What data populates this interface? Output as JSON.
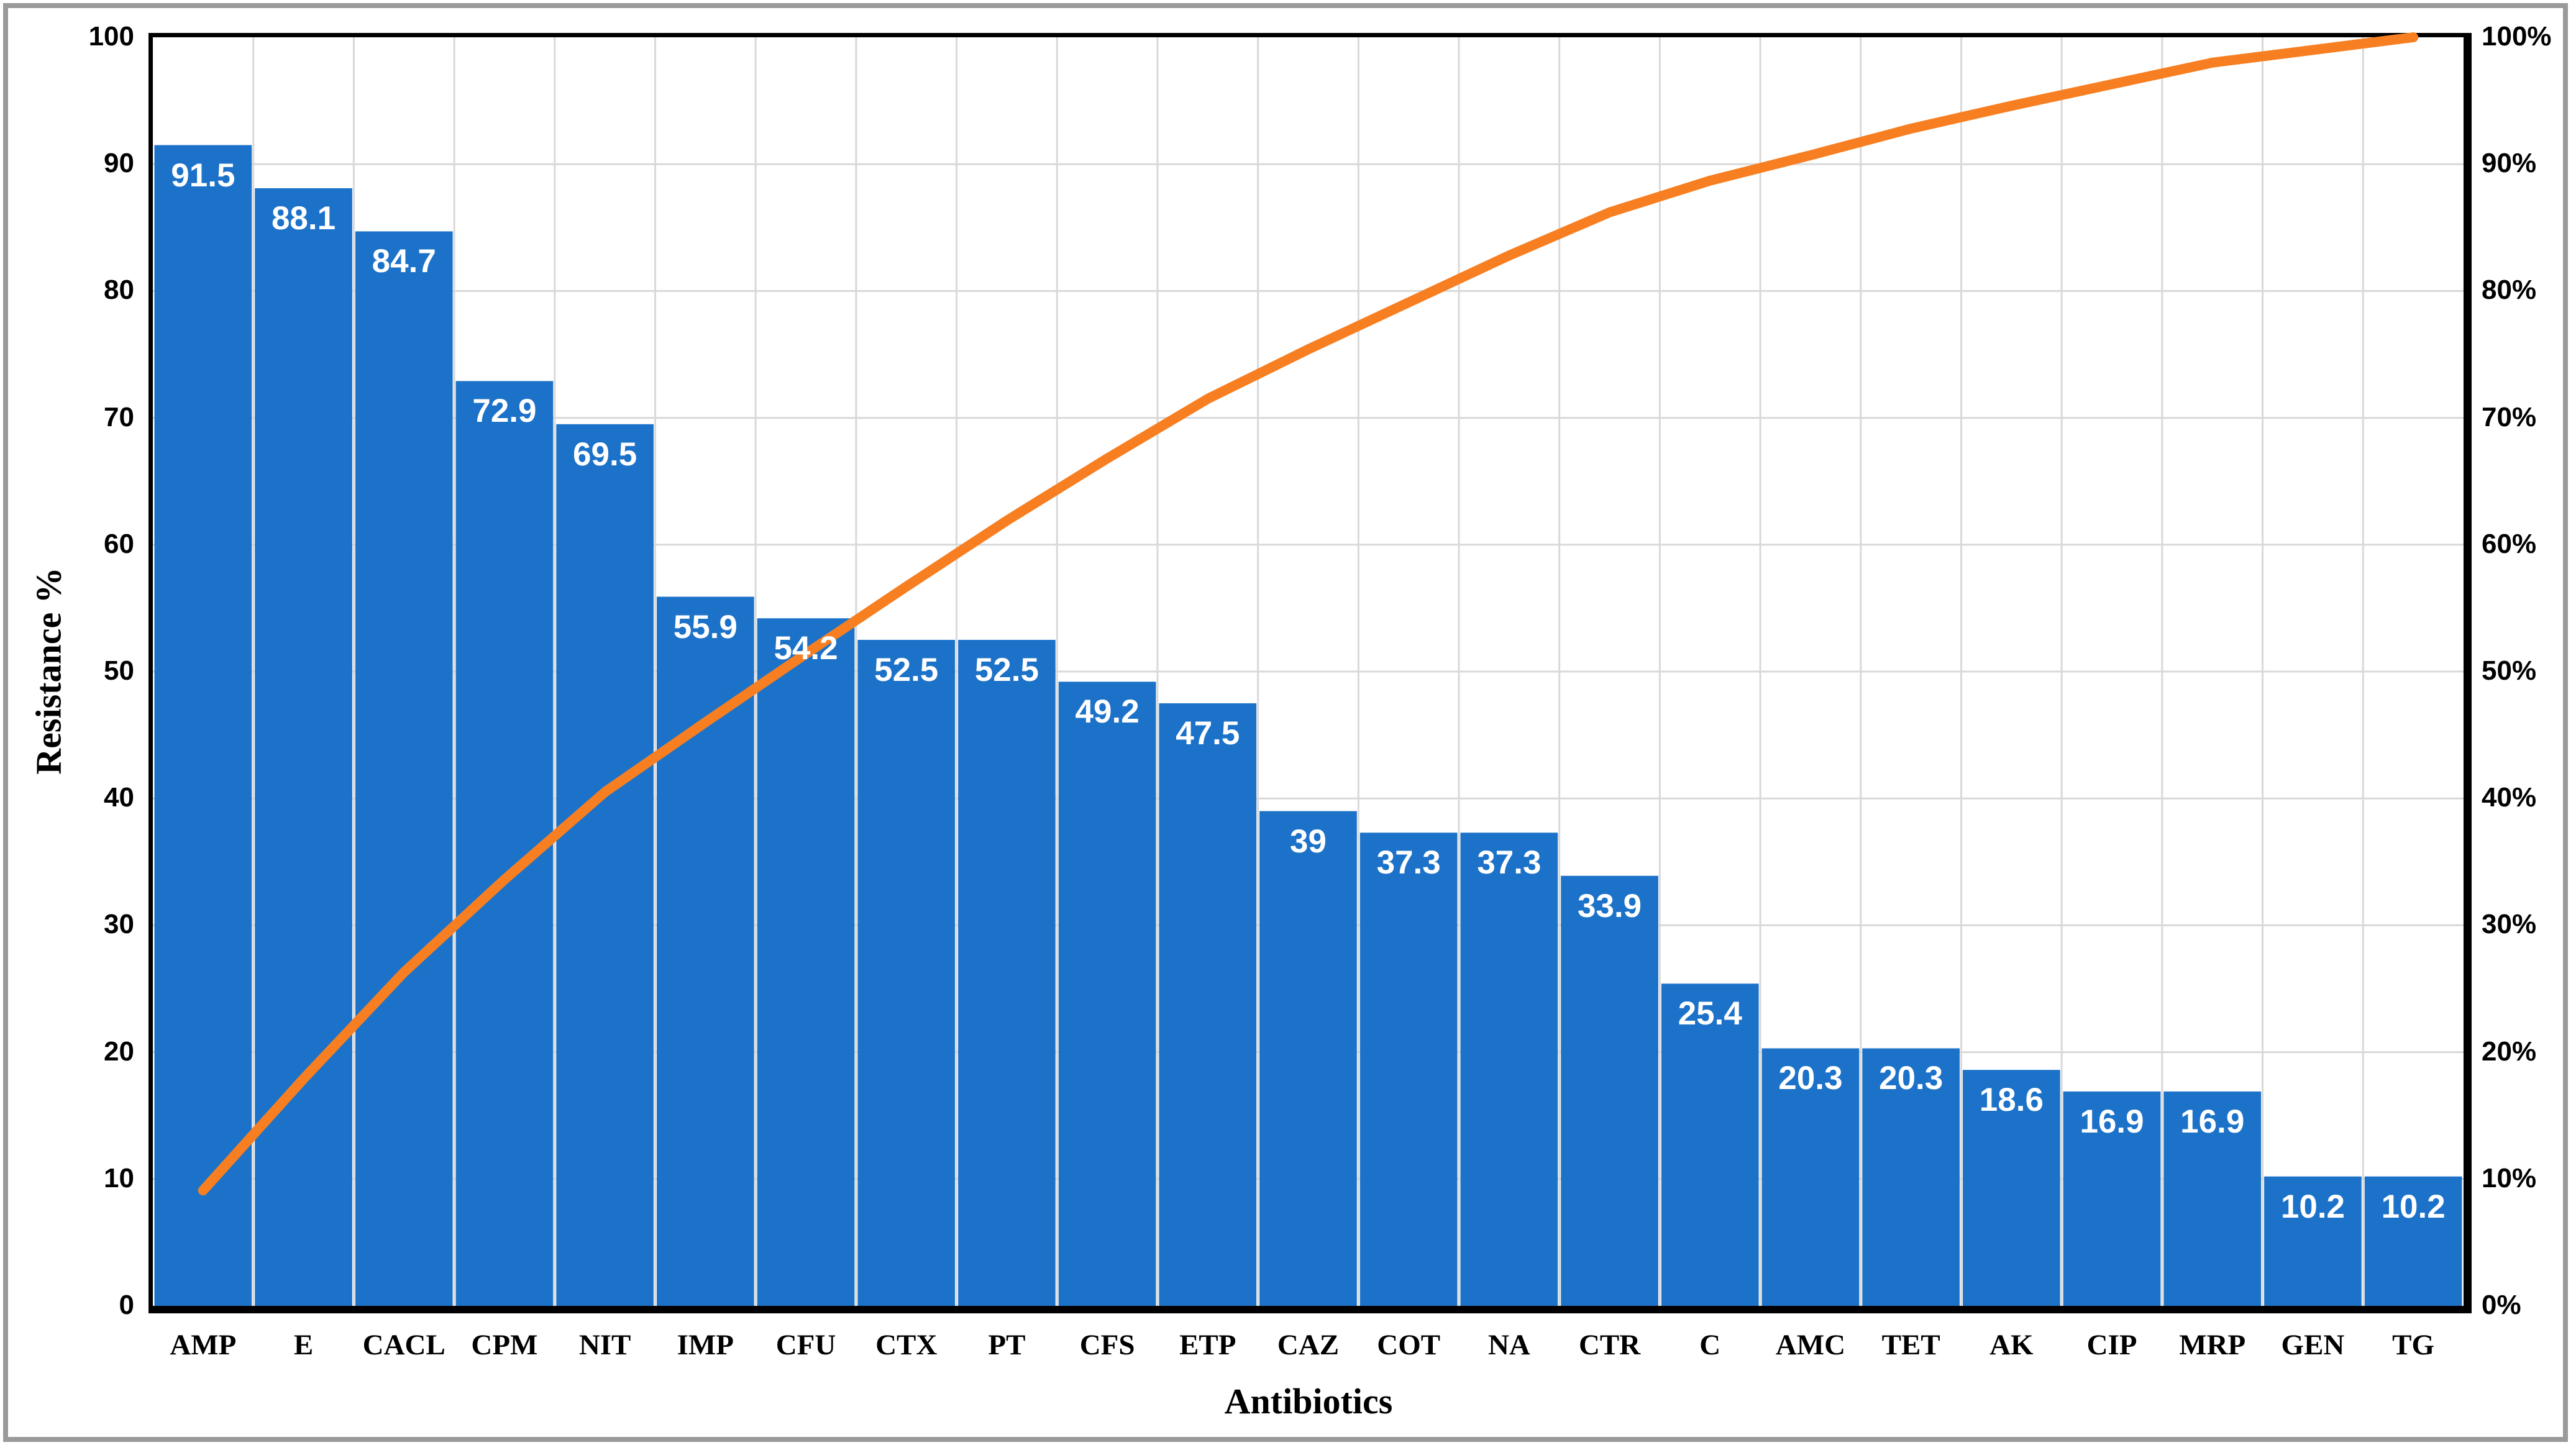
{
  "chart_data": {
    "type": "bar",
    "subtype": "pareto",
    "title": "",
    "xlabel": "Antibiotics",
    "ylabel": "Resistance %",
    "categories": [
      "AMP",
      "E",
      "CACL",
      "CPM",
      "NIT",
      "IMP",
      "CFU",
      "CTX",
      "PT",
      "CFS",
      "ETP",
      "CAZ",
      "COT",
      "NA",
      "CTR",
      "C",
      "AMC",
      "TET",
      "AK",
      "CIP",
      "MRP",
      "GEN",
      "TG"
    ],
    "series": [
      {
        "name": "Resistance %",
        "type": "bar",
        "values": [
          91.5,
          88.1,
          84.7,
          72.9,
          69.5,
          55.9,
          54.2,
          52.5,
          52.5,
          49.2,
          47.5,
          39,
          37.3,
          37.3,
          33.9,
          25.4,
          20.3,
          20.3,
          18.6,
          16.9,
          16.9,
          10.2,
          10.2
        ],
        "data_labels": [
          "91.5",
          "88.1",
          "84.7",
          "72.9",
          "69.5",
          "55.9",
          "54.2",
          "52.5",
          "52.5",
          "49.2",
          "47.5",
          "39",
          "37.3",
          "37.3",
          "33.9",
          "25.4",
          "20.3",
          "20.3",
          "18.6",
          "16.9",
          "16.9",
          "10.2",
          "10.2"
        ]
      },
      {
        "name": "Cumulative %",
        "type": "line",
        "values": [
          9.1,
          17.9,
          26.3,
          33.6,
          40.5,
          46.0,
          51.4,
          56.7,
          61.9,
          66.8,
          71.5,
          75.4,
          79.1,
          82.8,
          86.2,
          88.7,
          90.7,
          92.8,
          94.6,
          96.3,
          98.0,
          99.0,
          100.0
        ]
      }
    ],
    "left_axis_ticks": [
      "100",
      "90",
      "80",
      "70",
      "60",
      "50",
      "40",
      "30",
      "20",
      "10",
      "0"
    ],
    "right_axis_ticks": [
      "100%",
      "90%",
      "80%",
      "70%",
      "60%",
      "50%",
      "40%",
      "30%",
      "20%",
      "10%",
      "0%"
    ],
    "ylim": [
      0,
      100
    ],
    "grid": true,
    "legend": "none",
    "colors": {
      "bar": "#1c72c8",
      "line": "#f77f21",
      "grid": "#d9d9d9",
      "spine": "#000000",
      "data_label": "#ffffff",
      "tick_label": "#000000",
      "frame": "#9a9a9a",
      "background": "#ffffff"
    }
  }
}
